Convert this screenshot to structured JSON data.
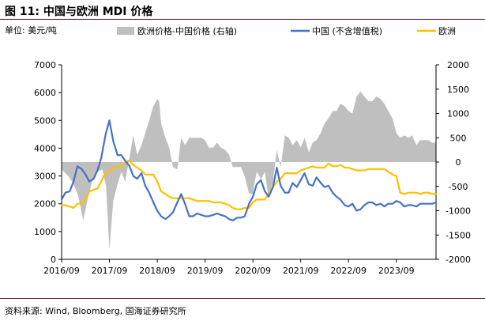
{
  "figure": {
    "title": "图 11:  中国与欧洲 MDI 价格",
    "source": "资料来源: Wind, Bloomberg, 国海证券研究所"
  },
  "chart_data": {
    "type": "line",
    "left_axis_unit": "单位: 美元/吨",
    "y_left": {
      "min": 0,
      "max": 7000,
      "ticks": [
        0,
        1000,
        2000,
        3000,
        4000,
        5000,
        6000,
        7000
      ]
    },
    "y_right": {
      "min": -2000,
      "max": 2000,
      "ticks": [
        -2000,
        -1500,
        -1000,
        -500,
        0,
        500,
        1000,
        1500,
        2000
      ]
    },
    "x_range": [
      2016.75,
      2024.58
    ],
    "x_ticks": [
      {
        "x": 2016.75,
        "label": "2016/09"
      },
      {
        "x": 2017.75,
        "label": "2017/09"
      },
      {
        "x": 2018.75,
        "label": "2018/09"
      },
      {
        "x": 2019.75,
        "label": "2019/09"
      },
      {
        "x": 2020.75,
        "label": "2020/09"
      },
      {
        "x": 2021.75,
        "label": "2021/09"
      },
      {
        "x": 2022.75,
        "label": "2022/09"
      },
      {
        "x": 2023.75,
        "label": "2023/09"
      }
    ],
    "legend": [
      "欧洲价格-中国价格 (右轴)",
      "中国 (不含增值税)",
      "欧洲"
    ],
    "colors": {
      "spread": "#bfbfbf",
      "china": "#4472c4",
      "europe": "#ffc000"
    },
    "series": [
      {
        "name": "欧洲价格-中国价格 (右轴)",
        "axis": "right",
        "style": "area",
        "points": [
          [
            2016.75,
            -150
          ],
          [
            2016.9,
            -300
          ],
          [
            2017.0,
            -450
          ],
          [
            2017.1,
            -700
          ],
          [
            2017.2,
            -1200
          ],
          [
            2017.3,
            -750
          ],
          [
            2017.4,
            -350
          ],
          [
            2017.5,
            -200
          ],
          [
            2017.6,
            -150
          ],
          [
            2017.68,
            -500
          ],
          [
            2017.75,
            -1800
          ],
          [
            2017.83,
            -800
          ],
          [
            2017.92,
            -450
          ],
          [
            2018.0,
            -200
          ],
          [
            2018.08,
            -400
          ],
          [
            2018.17,
            100
          ],
          [
            2018.25,
            550
          ],
          [
            2018.33,
            150
          ],
          [
            2018.42,
            350
          ],
          [
            2018.5,
            600
          ],
          [
            2018.58,
            850
          ],
          [
            2018.67,
            1150
          ],
          [
            2018.75,
            1300
          ],
          [
            2018.79,
            1250
          ],
          [
            2018.83,
            800
          ],
          [
            2018.92,
            500
          ],
          [
            2019.0,
            300
          ],
          [
            2019.08,
            -100
          ],
          [
            2019.17,
            -150
          ],
          [
            2019.25,
            500
          ],
          [
            2019.33,
            350
          ],
          [
            2019.42,
            500
          ],
          [
            2019.5,
            500
          ],
          [
            2019.58,
            500
          ],
          [
            2019.67,
            500
          ],
          [
            2019.75,
            450
          ],
          [
            2019.83,
            300
          ],
          [
            2019.92,
            300
          ],
          [
            2020.0,
            400
          ],
          [
            2020.08,
            300
          ],
          [
            2020.17,
            250
          ],
          [
            2020.25,
            150
          ],
          [
            2020.33,
            -100
          ],
          [
            2020.42,
            -100
          ],
          [
            2020.5,
            -100
          ],
          [
            2020.58,
            -300
          ],
          [
            2020.67,
            -650
          ],
          [
            2020.75,
            -650
          ],
          [
            2020.79,
            -400
          ],
          [
            2020.83,
            -200
          ],
          [
            2020.92,
            -350
          ],
          [
            2021.0,
            -200
          ],
          [
            2021.08,
            -750
          ],
          [
            2021.17,
            -400
          ],
          [
            2021.25,
            250
          ],
          [
            2021.33,
            -100
          ],
          [
            2021.42,
            550
          ],
          [
            2021.5,
            500
          ],
          [
            2021.58,
            350
          ],
          [
            2021.67,
            450
          ],
          [
            2021.75,
            300
          ],
          [
            2021.83,
            500
          ],
          [
            2021.92,
            200
          ],
          [
            2022.0,
            400
          ],
          [
            2022.08,
            450
          ],
          [
            2022.17,
            600
          ],
          [
            2022.25,
            800
          ],
          [
            2022.33,
            900
          ],
          [
            2022.42,
            1050
          ],
          [
            2022.5,
            1050
          ],
          [
            2022.58,
            1200
          ],
          [
            2022.67,
            1150
          ],
          [
            2022.75,
            1050
          ],
          [
            2022.83,
            1000
          ],
          [
            2022.92,
            1350
          ],
          [
            2023.0,
            1450
          ],
          [
            2023.08,
            1350
          ],
          [
            2023.17,
            1250
          ],
          [
            2023.25,
            1250
          ],
          [
            2023.33,
            1350
          ],
          [
            2023.42,
            1300
          ],
          [
            2023.5,
            1200
          ],
          [
            2023.58,
            1050
          ],
          [
            2023.67,
            900
          ],
          [
            2023.75,
            600
          ],
          [
            2023.83,
            500
          ],
          [
            2023.92,
            550
          ],
          [
            2024.0,
            500
          ],
          [
            2024.08,
            550
          ],
          [
            2024.17,
            350
          ],
          [
            2024.25,
            450
          ],
          [
            2024.33,
            450
          ],
          [
            2024.42,
            450
          ],
          [
            2024.5,
            400
          ],
          [
            2024.58,
            400
          ]
        ]
      },
      {
        "name": "中国 (不含增值税)",
        "axis": "left",
        "style": "line",
        "points": [
          [
            2016.75,
            2150
          ],
          [
            2016.83,
            2400
          ],
          [
            2016.92,
            2450
          ],
          [
            2017.0,
            2800
          ],
          [
            2017.08,
            3350
          ],
          [
            2017.17,
            3250
          ],
          [
            2017.25,
            3050
          ],
          [
            2017.33,
            2800
          ],
          [
            2017.42,
            2900
          ],
          [
            2017.5,
            3200
          ],
          [
            2017.58,
            3650
          ],
          [
            2017.67,
            4500
          ],
          [
            2017.75,
            5000
          ],
          [
            2017.83,
            4250
          ],
          [
            2017.92,
            3750
          ],
          [
            2018.0,
            3750
          ],
          [
            2018.08,
            3550
          ],
          [
            2018.17,
            3350
          ],
          [
            2018.25,
            3000
          ],
          [
            2018.33,
            2900
          ],
          [
            2018.42,
            3100
          ],
          [
            2018.5,
            2650
          ],
          [
            2018.58,
            2400
          ],
          [
            2018.67,
            2050
          ],
          [
            2018.75,
            1750
          ],
          [
            2018.83,
            1550
          ],
          [
            2018.92,
            1450
          ],
          [
            2019.0,
            1550
          ],
          [
            2019.08,
            1700
          ],
          [
            2019.17,
            2050
          ],
          [
            2019.25,
            2350
          ],
          [
            2019.33,
            2000
          ],
          [
            2019.42,
            1550
          ],
          [
            2019.5,
            1550
          ],
          [
            2019.58,
            1650
          ],
          [
            2019.67,
            1600
          ],
          [
            2019.75,
            1550
          ],
          [
            2019.83,
            1550
          ],
          [
            2019.92,
            1600
          ],
          [
            2020.0,
            1650
          ],
          [
            2020.08,
            1600
          ],
          [
            2020.17,
            1550
          ],
          [
            2020.25,
            1450
          ],
          [
            2020.33,
            1400
          ],
          [
            2020.42,
            1500
          ],
          [
            2020.5,
            1500
          ],
          [
            2020.58,
            1550
          ],
          [
            2020.67,
            2000
          ],
          [
            2020.75,
            2250
          ],
          [
            2020.83,
            2700
          ],
          [
            2020.92,
            2850
          ],
          [
            2021.0,
            2450
          ],
          [
            2021.08,
            2250
          ],
          [
            2021.17,
            2600
          ],
          [
            2021.25,
            3300
          ],
          [
            2021.33,
            2650
          ],
          [
            2021.42,
            2400
          ],
          [
            2021.5,
            2400
          ],
          [
            2021.58,
            2750
          ],
          [
            2021.67,
            2600
          ],
          [
            2021.75,
            2850
          ],
          [
            2021.83,
            3100
          ],
          [
            2021.92,
            2700
          ],
          [
            2022.0,
            2650
          ],
          [
            2022.08,
            2950
          ],
          [
            2022.17,
            2750
          ],
          [
            2022.25,
            2600
          ],
          [
            2022.33,
            2650
          ],
          [
            2022.42,
            2400
          ],
          [
            2022.5,
            2250
          ],
          [
            2022.58,
            2150
          ],
          [
            2022.67,
            1950
          ],
          [
            2022.75,
            1900
          ],
          [
            2022.83,
            2000
          ],
          [
            2022.92,
            1750
          ],
          [
            2023.0,
            1800
          ],
          [
            2023.08,
            1950
          ],
          [
            2023.17,
            2050
          ],
          [
            2023.25,
            2050
          ],
          [
            2023.33,
            1950
          ],
          [
            2023.42,
            2000
          ],
          [
            2023.5,
            1900
          ],
          [
            2023.58,
            2000
          ],
          [
            2023.67,
            2000
          ],
          [
            2023.75,
            2100
          ],
          [
            2023.83,
            2050
          ],
          [
            2023.92,
            1900
          ],
          [
            2024.0,
            1950
          ],
          [
            2024.08,
            1950
          ],
          [
            2024.17,
            1900
          ],
          [
            2024.25,
            2000
          ],
          [
            2024.33,
            2000
          ],
          [
            2024.42,
            2000
          ],
          [
            2024.5,
            2000
          ],
          [
            2024.58,
            2050
          ]
        ]
      },
      {
        "name": "欧洲",
        "axis": "left",
        "style": "line",
        "points": [
          [
            2016.75,
            1950
          ],
          [
            2016.83,
            1950
          ],
          [
            2016.92,
            1900
          ],
          [
            2017.0,
            1850
          ],
          [
            2017.08,
            2000
          ],
          [
            2017.17,
            2000
          ],
          [
            2017.25,
            2150
          ],
          [
            2017.33,
            2450
          ],
          [
            2017.42,
            2500
          ],
          [
            2017.5,
            2550
          ],
          [
            2017.58,
            2800
          ],
          [
            2017.67,
            3150
          ],
          [
            2017.75,
            3150
          ],
          [
            2017.83,
            3300
          ],
          [
            2017.92,
            3300
          ],
          [
            2018.0,
            3350
          ],
          [
            2018.08,
            3500
          ],
          [
            2018.17,
            3550
          ],
          [
            2018.25,
            3400
          ],
          [
            2018.33,
            3300
          ],
          [
            2018.42,
            3200
          ],
          [
            2018.5,
            3050
          ],
          [
            2018.58,
            3050
          ],
          [
            2018.67,
            3050
          ],
          [
            2018.75,
            2800
          ],
          [
            2018.83,
            2450
          ],
          [
            2018.92,
            2350
          ],
          [
            2019.0,
            2250
          ],
          [
            2019.08,
            2200
          ],
          [
            2019.17,
            2200
          ],
          [
            2019.25,
            2200
          ],
          [
            2019.33,
            2200
          ],
          [
            2019.42,
            2200
          ],
          [
            2019.5,
            2150
          ],
          [
            2019.58,
            2100
          ],
          [
            2019.67,
            2100
          ],
          [
            2019.75,
            2100
          ],
          [
            2019.83,
            2100
          ],
          [
            2019.92,
            2050
          ],
          [
            2020.0,
            2050
          ],
          [
            2020.08,
            2050
          ],
          [
            2020.17,
            2000
          ],
          [
            2020.25,
            1950
          ],
          [
            2020.33,
            1850
          ],
          [
            2020.42,
            1800
          ],
          [
            2020.5,
            1800
          ],
          [
            2020.58,
            1850
          ],
          [
            2020.67,
            1850
          ],
          [
            2020.75,
            2050
          ],
          [
            2020.83,
            2150
          ],
          [
            2020.92,
            2150
          ],
          [
            2021.0,
            2150
          ],
          [
            2021.08,
            2350
          ],
          [
            2021.17,
            2600
          ],
          [
            2021.25,
            2800
          ],
          [
            2021.33,
            2900
          ],
          [
            2021.42,
            3100
          ],
          [
            2021.5,
            3100
          ],
          [
            2021.58,
            3100
          ],
          [
            2021.67,
            3100
          ],
          [
            2021.75,
            3200
          ],
          [
            2021.83,
            3250
          ],
          [
            2021.92,
            3300
          ],
          [
            2022.0,
            3350
          ],
          [
            2022.08,
            3300
          ],
          [
            2022.17,
            3300
          ],
          [
            2022.25,
            3300
          ],
          [
            2022.33,
            3450
          ],
          [
            2022.42,
            3350
          ],
          [
            2022.5,
            3350
          ],
          [
            2022.58,
            3400
          ],
          [
            2022.67,
            3300
          ],
          [
            2022.75,
            3300
          ],
          [
            2022.83,
            3250
          ],
          [
            2022.92,
            3200
          ],
          [
            2023.0,
            3200
          ],
          [
            2023.08,
            3200
          ],
          [
            2023.17,
            3250
          ],
          [
            2023.25,
            3250
          ],
          [
            2023.33,
            3250
          ],
          [
            2023.42,
            3250
          ],
          [
            2023.5,
            3250
          ],
          [
            2023.58,
            3150
          ],
          [
            2023.67,
            3050
          ],
          [
            2023.75,
            3000
          ],
          [
            2023.83,
            2400
          ],
          [
            2023.92,
            2350
          ],
          [
            2024.0,
            2400
          ],
          [
            2024.08,
            2400
          ],
          [
            2024.17,
            2400
          ],
          [
            2024.25,
            2350
          ],
          [
            2024.33,
            2400
          ],
          [
            2024.42,
            2400
          ],
          [
            2024.5,
            2350
          ],
          [
            2024.58,
            2350
          ]
        ]
      }
    ]
  }
}
